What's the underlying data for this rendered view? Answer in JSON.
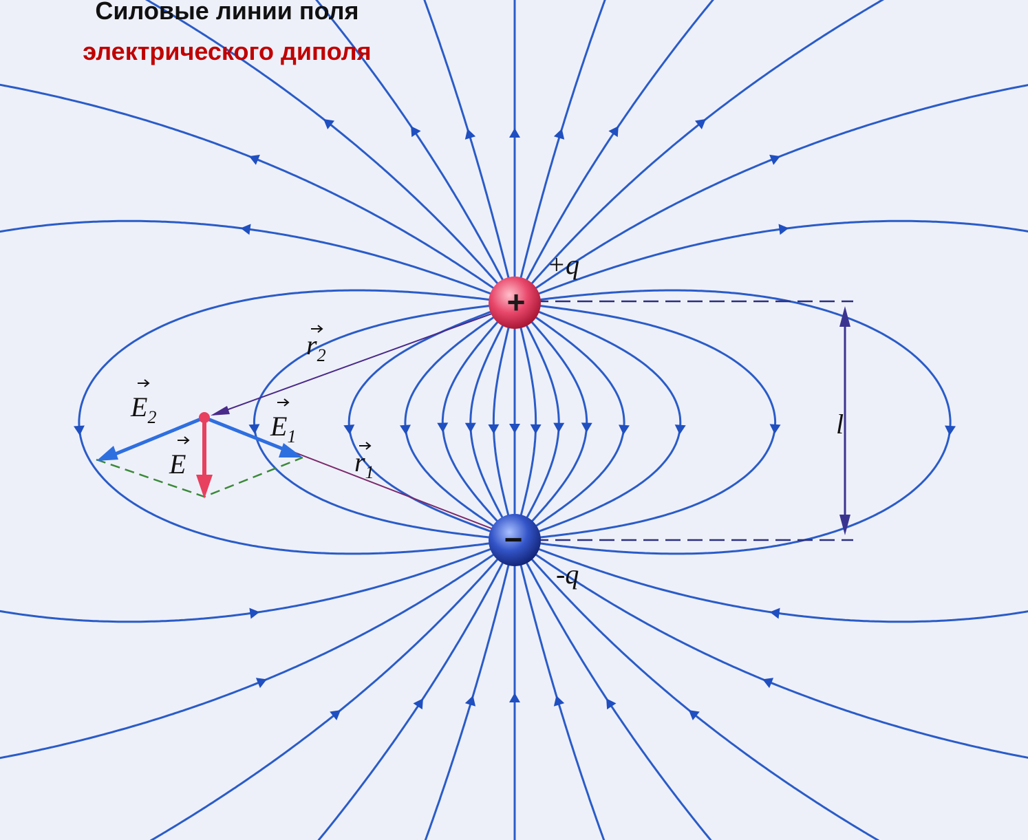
{
  "title": {
    "line1": "Силовые линии поля",
    "line2": "электрического диполя"
  },
  "charges": {
    "positive": {
      "sign": "+",
      "label": "+q"
    },
    "negative": {
      "sign": "−",
      "label": "-q"
    }
  },
  "vectors": {
    "r1": {
      "symbol": "r",
      "subscript": "1"
    },
    "r2": {
      "symbol": "r",
      "subscript": "2"
    },
    "E1": {
      "symbol": "E",
      "subscript": "1"
    },
    "E2": {
      "symbol": "E",
      "subscript": "2"
    },
    "E": {
      "symbol": "E"
    }
  },
  "distance": {
    "label": "l"
  }
}
